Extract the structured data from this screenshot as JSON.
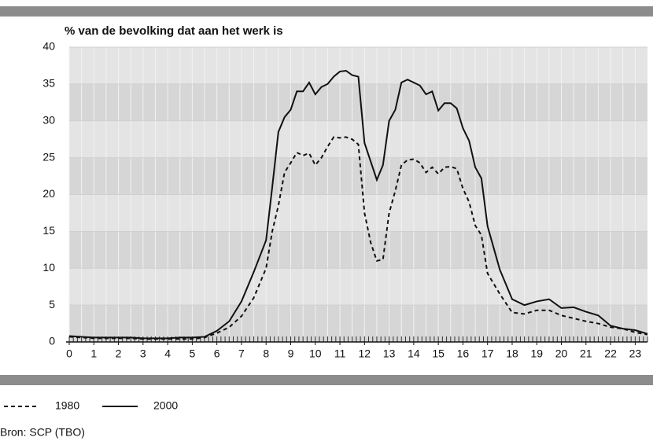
{
  "chart_data": {
    "type": "line",
    "title": "% van de bevolking dat aan het werk is",
    "source": "Bron: SCP (TBO)",
    "x": [
      0,
      0.5,
      1,
      1.5,
      2,
      2.5,
      3,
      3.5,
      4,
      4.5,
      5,
      5.5,
      6,
      6.5,
      7,
      7.5,
      8,
      8.25,
      8.5,
      8.75,
      9,
      9.25,
      9.5,
      9.75,
      10,
      10.25,
      10.5,
      10.75,
      11,
      11.25,
      11.5,
      11.75,
      12,
      12.25,
      12.5,
      12.75,
      13,
      13.25,
      13.5,
      13.75,
      14,
      14.25,
      14.5,
      14.75,
      15,
      15.25,
      15.5,
      15.75,
      16,
      16.25,
      16.5,
      16.75,
      17,
      17.5,
      18,
      18.5,
      19,
      19.5,
      20,
      20.5,
      21,
      21.5,
      22,
      22.5,
      23,
      23.5
    ],
    "series": [
      {
        "name": "1980",
        "color": "#111111",
        "style": "dashed",
        "values": [
          0.7,
          0.6,
          0.5,
          0.5,
          0.5,
          0.5,
          0.4,
          0.4,
          0.4,
          0.4,
          0.4,
          0.6,
          1.2,
          2,
          3.5,
          6,
          10,
          15,
          18.5,
          23,
          24.3,
          25.7,
          25.3,
          25.6,
          24,
          25,
          26.5,
          27.8,
          27.7,
          27.8,
          27.5,
          26.8,
          17.5,
          13.5,
          11,
          11.2,
          17.5,
          20.5,
          24,
          24.7,
          24.8,
          24.3,
          23,
          23.7,
          22.8,
          23.7,
          23.8,
          23.5,
          20.8,
          19,
          15.8,
          14.5,
          9.3,
          6.5,
          4,
          3.8,
          4.3,
          4.3,
          3.6,
          3.2,
          2.8,
          2.5,
          2,
          1.8,
          1.3,
          1
        ]
      },
      {
        "name": "2000",
        "color": "#111111",
        "style": "solid",
        "values": [
          0.8,
          0.7,
          0.6,
          0.6,
          0.6,
          0.6,
          0.5,
          0.5,
          0.5,
          0.6,
          0.6,
          0.7,
          1.5,
          2.8,
          5.5,
          9.5,
          13.8,
          21,
          28.5,
          30.5,
          31.5,
          34,
          34,
          35.2,
          33.6,
          34.6,
          35,
          36,
          36.7,
          36.8,
          36.2,
          36,
          27,
          24.5,
          22,
          24,
          30,
          31.5,
          35.2,
          35.6,
          35.2,
          34.8,
          33.6,
          34,
          31.4,
          32.4,
          32.4,
          31.7,
          29,
          27.3,
          23.7,
          22.2,
          15.7,
          9.8,
          5.8,
          5,
          5.5,
          5.8,
          4.6,
          4.7,
          4.1,
          3.6,
          2.2,
          1.8,
          1.6,
          1.1
        ]
      }
    ],
    "xlim": [
      0,
      23.5
    ],
    "xticks": [
      0,
      1,
      2,
      3,
      4,
      5,
      6,
      7,
      8,
      9,
      10,
      11,
      12,
      13,
      14,
      15,
      16,
      17,
      18,
      19,
      20,
      21,
      22,
      23
    ],
    "ylim": [
      0,
      40
    ],
    "yticks": [
      0,
      5,
      10,
      15,
      20,
      25,
      30,
      35,
      40
    ]
  }
}
